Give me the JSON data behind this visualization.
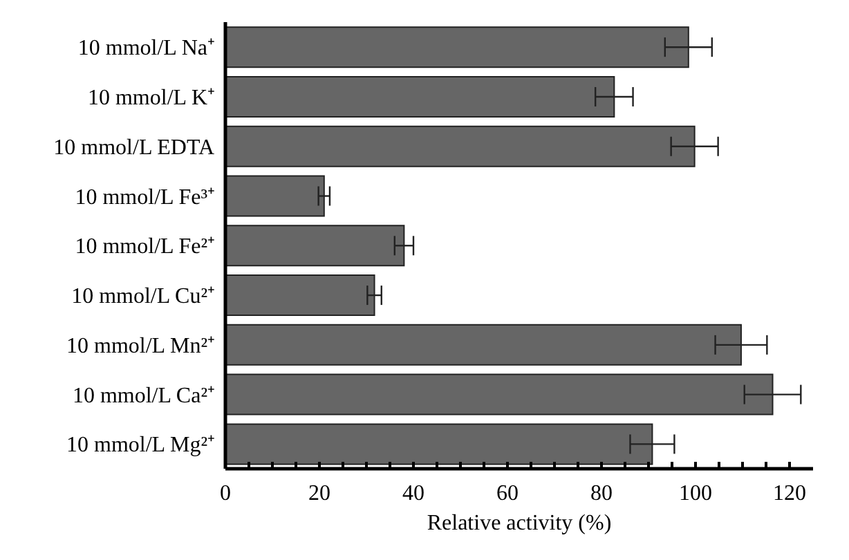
{
  "chart_data": {
    "type": "bar",
    "orientation": "horizontal",
    "xlabel": "Relative activity (%)",
    "categories": [
      "10 mmol/L Na⁺",
      "10 mmol/L K⁺",
      "10 mmol/L EDTA",
      "10 mmol/L Fe³⁺",
      "10 mmol/L Fe²⁺",
      "10 mmol/L Cu²⁺",
      "10 mmol/L Mn²⁺",
      "10 mmol/L Ca²⁺",
      "10 mmol/L Mg²⁺"
    ],
    "values": [
      98.5,
      82.7,
      99.8,
      21,
      38,
      31.7,
      109.7,
      116.4,
      90.8
    ],
    "errors": [
      5,
      4,
      5,
      1.2,
      2,
      1.5,
      5.5,
      6,
      4.7
    ],
    "color": "#666666",
    "xlim": [
      0,
      125
    ],
    "xticks": [
      0,
      {
        "value": 5,
        "label": null
      },
      {
        "value": 10,
        "label": null
      },
      {
        "value": 15,
        "label": null
      },
      20,
      {
        "value": 25,
        "label": null
      },
      {
        "value": 30,
        "label": null
      },
      {
        "value": 35,
        "label": null
      },
      40,
      {
        "value": 45,
        "label": null
      },
      {
        "value": 50,
        "label": null
      },
      {
        "value": 55,
        "label": null
      },
      60,
      {
        "value": 65,
        "label": null
      },
      {
        "value": 70,
        "label": null
      },
      {
        "value": 75,
        "label": null
      },
      80,
      {
        "value": 85,
        "label": null
      },
      {
        "value": 90,
        "label": null
      },
      {
        "value": 95,
        "label": null
      },
      100,
      {
        "value": 105,
        "label": null
      },
      {
        "value": 110,
        "label": null
      },
      {
        "value": 115,
        "label": null
      },
      120
    ],
    "grid": false,
    "legend": false
  }
}
